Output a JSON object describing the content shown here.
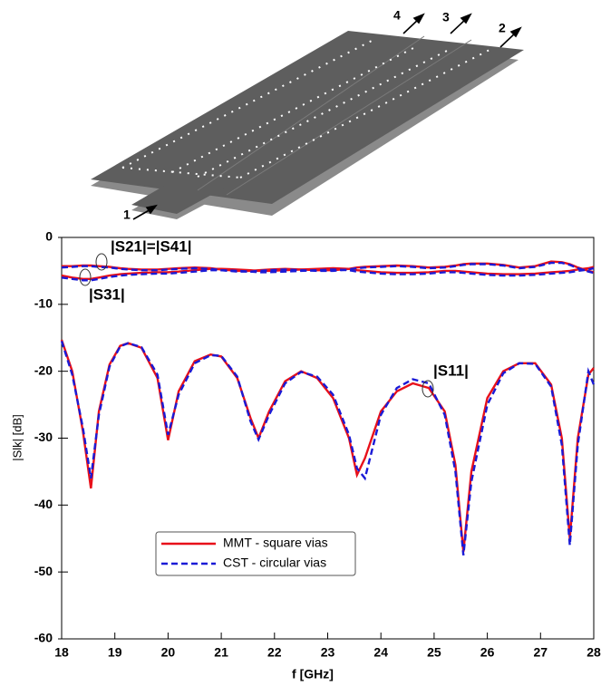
{
  "illustration": {
    "ports": [
      "1",
      "2",
      "3",
      "4"
    ]
  },
  "annotations": [
    "|S21|=|S41|",
    "|S31|",
    "|S11|"
  ],
  "chart_data": {
    "type": "line",
    "xlabel": "f [GHz]",
    "ylabel": "|Slk|  [dB]",
    "xlim": [
      18,
      28
    ],
    "xticks": [
      18,
      19,
      20,
      21,
      22,
      23,
      24,
      25,
      26,
      27,
      28
    ],
    "ylim": [
      -60,
      0
    ],
    "yticks": [
      -60,
      -50,
      -40,
      -30,
      -20,
      -10,
      0
    ],
    "legend": "bottom-left",
    "x": [
      18,
      18.2,
      18.4,
      18.55,
      18.7,
      18.9,
      19.1,
      19.25,
      19.5,
      19.8,
      20,
      20.2,
      20.5,
      20.8,
      21,
      21.3,
      21.55,
      21.7,
      21.9,
      22.2,
      22.5,
      22.8,
      23.1,
      23.4,
      23.55,
      23.7,
      24,
      24.3,
      24.6,
      24.9,
      25.2,
      25.4,
      25.55,
      25.7,
      26,
      26.3,
      26.6,
      26.9,
      27.2,
      27.4,
      27.55,
      27.7,
      27.9,
      28
    ],
    "series": [
      {
        "name": "MMT - square vias",
        "color": "#e8101a",
        "dashed": false,
        "s11": [
          -15.3,
          -20,
          -29,
          -37.5,
          -26,
          -19,
          -16.2,
          -15.8,
          -16.5,
          -21,
          -30.3,
          -23,
          -18.5,
          -17.5,
          -17.8,
          -21,
          -27,
          -30,
          -26,
          -21.5,
          -20,
          -21,
          -24,
          -30,
          -35.5,
          -33,
          -26,
          -23,
          -21.8,
          -22.5,
          -26,
          -34,
          -47,
          -35,
          -24,
          -20,
          -18.8,
          -18.8,
          -22,
          -30,
          -45,
          -30,
          -20.5,
          -19.5
        ],
        "s21": [
          -4.3,
          -4.3,
          -4.2,
          -4.2,
          -4.3,
          -4.4,
          -4.6,
          -4.7,
          -4.8,
          -4.8,
          -4.7,
          -4.6,
          -4.5,
          -4.6,
          -4.8,
          -5.0,
          -5.0,
          -4.9,
          -4.8,
          -4.7,
          -4.8,
          -4.9,
          -4.9,
          -4.7,
          -4.5,
          -4.4,
          -4.3,
          -4.2,
          -4.3,
          -4.5,
          -4.4,
          -4.2,
          -4.0,
          -3.9,
          -3.9,
          -4.1,
          -4.5,
          -4.3,
          -3.6,
          -3.7,
          -4.0,
          -4.5,
          -5.0,
          -5.2
        ],
        "s31": [
          -5.7,
          -6.0,
          -6.2,
          -6.2,
          -6.0,
          -5.7,
          -5.5,
          -5.4,
          -5.3,
          -5.2,
          -5.2,
          -5.1,
          -4.9,
          -4.7,
          -4.7,
          -4.8,
          -4.9,
          -5.0,
          -5.0,
          -4.9,
          -4.8,
          -4.7,
          -4.6,
          -4.7,
          -4.9,
          -5.0,
          -5.2,
          -5.3,
          -5.3,
          -5.2,
          -5.0,
          -5.0,
          -5.1,
          -5.2,
          -5.4,
          -5.5,
          -5.5,
          -5.4,
          -5.2,
          -5.1,
          -5.0,
          -4.8,
          -4.6,
          -4.4
        ]
      },
      {
        "name": "CST - circular vias",
        "color": "#1a1ad6",
        "dashed": true,
        "s11": [
          -15.5,
          -20.5,
          -28.5,
          -36,
          -26.5,
          -19.3,
          -16.3,
          -15.8,
          -16.4,
          -20.5,
          -29.5,
          -23.5,
          -18.8,
          -17.6,
          -17.7,
          -20.8,
          -27.5,
          -30.2,
          -26.5,
          -21.8,
          -20.1,
          -20.8,
          -23.5,
          -29.5,
          -34.5,
          -36,
          -26.5,
          -22.5,
          -21.2,
          -21.8,
          -26.5,
          -35,
          -47.5,
          -36.5,
          -25,
          -20.3,
          -18.8,
          -18.9,
          -22.3,
          -31,
          -46,
          -31,
          -20,
          -22
        ],
        "s21": [
          -4.5,
          -4.4,
          -4.3,
          -4.3,
          -4.4,
          -4.5,
          -4.7,
          -4.8,
          -4.9,
          -4.9,
          -4.8,
          -4.7,
          -4.6,
          -4.7,
          -4.9,
          -5.1,
          -5.1,
          -5.0,
          -4.9,
          -4.8,
          -4.9,
          -5.0,
          -5.0,
          -4.8,
          -4.6,
          -4.5,
          -4.4,
          -4.3,
          -4.4,
          -4.6,
          -4.5,
          -4.3,
          -4.1,
          -4.0,
          -4.0,
          -4.2,
          -4.6,
          -4.4,
          -3.8,
          -3.8,
          -4.1,
          -4.6,
          -5.1,
          -5.3
        ],
        "s31": [
          -6.0,
          -6.2,
          -6.4,
          -6.4,
          -6.2,
          -5.9,
          -5.7,
          -5.6,
          -5.5,
          -5.4,
          -5.4,
          -5.3,
          -5.1,
          -4.9,
          -4.9,
          -5.0,
          -5.1,
          -5.2,
          -5.2,
          -5.1,
          -5.0,
          -4.9,
          -4.8,
          -4.9,
          -5.1,
          -5.2,
          -5.4,
          -5.5,
          -5.5,
          -5.4,
          -5.2,
          -5.2,
          -5.3,
          -5.4,
          -5.6,
          -5.7,
          -5.7,
          -5.6,
          -5.4,
          -5.3,
          -5.2,
          -5.0,
          -4.8,
          -4.6
        ]
      }
    ]
  }
}
